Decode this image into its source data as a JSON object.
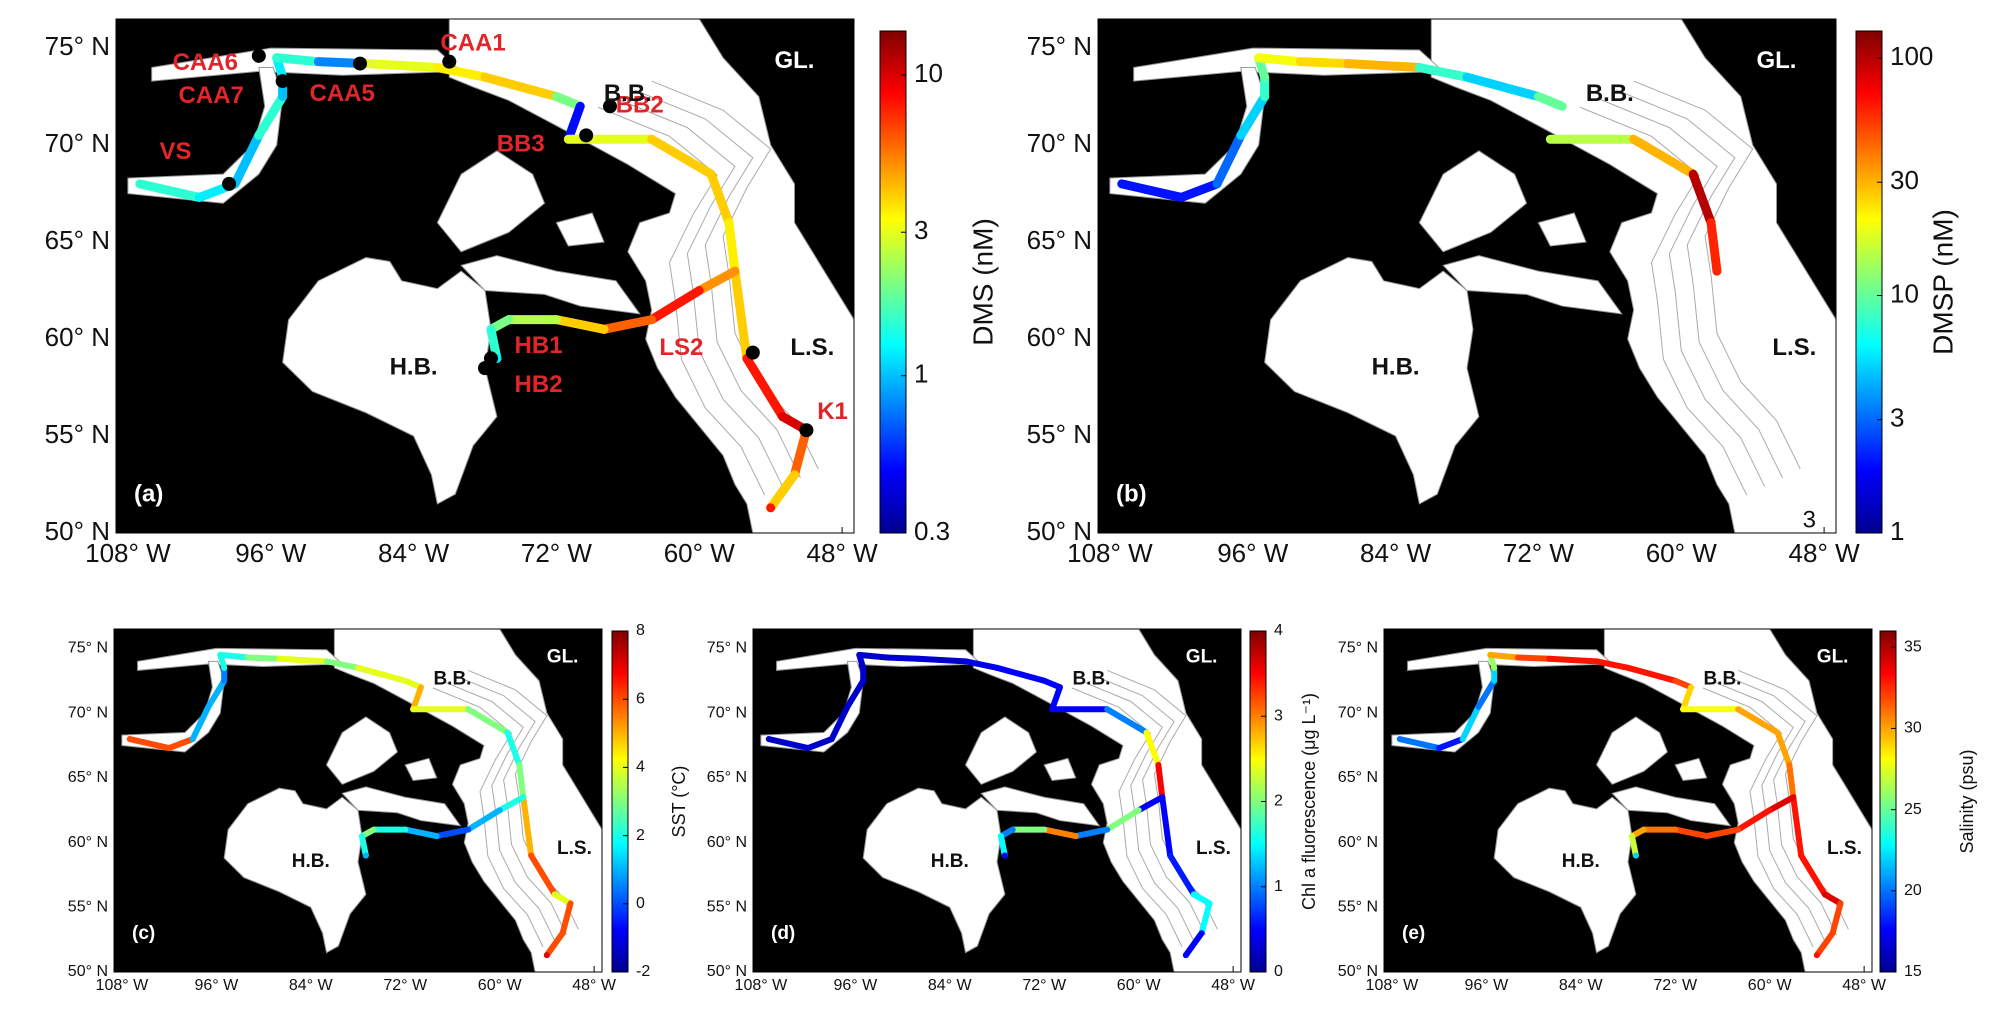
{
  "map": {
    "xlim": [
      -109,
      -47
    ],
    "ylim": [
      50,
      76.5
    ],
    "xticks": [
      {
        "value": -108,
        "label": "108° W"
      },
      {
        "value": -96,
        "label": "96° W"
      },
      {
        "value": -84,
        "label": "84° W"
      },
      {
        "value": -72,
        "label": "72° W"
      },
      {
        "value": -60,
        "label": "60° W"
      },
      {
        "value": -48,
        "label": "48° W"
      }
    ],
    "yticks": [
      {
        "value": 50,
        "label": "50° N"
      },
      {
        "value": 55,
        "label": "55° N"
      },
      {
        "value": 60,
        "label": "60° N"
      },
      {
        "value": 65,
        "label": "65° N"
      },
      {
        "value": 70,
        "label": "70° N"
      },
      {
        "value": 75,
        "label": "75° N"
      }
    ],
    "regions": [
      "B.B.",
      "GL.",
      "H.B.",
      "L.S."
    ]
  },
  "tracks": [
    {
      "lon": [
        -107,
        -102,
        -99,
        -97,
        -95,
        -95,
        -95.5,
        -92,
        -88,
        -82,
        -78,
        -72,
        -70,
        -71,
        -64,
        -59,
        -57.5,
        -57,
        -56,
        -53,
        -51,
        -52,
        -54
      ],
      "lat": [
        68,
        67.3,
        68,
        70.5,
        72.5,
        73.5,
        74.5,
        74.3,
        74.2,
        74,
        73.5,
        72.5,
        72,
        70.3,
        70.3,
        68.5,
        66,
        63.5,
        59,
        56,
        55.3,
        53,
        51.3
      ]
    },
    {
      "lon": [
        -57,
        -60,
        -64,
        -68,
        -72,
        -76,
        -77.5,
        -77
      ],
      "lat": [
        63.5,
        62.5,
        61,
        60.5,
        61,
        61,
        60.5,
        59
      ]
    }
  ],
  "panels": [
    {
      "label": "(a)",
      "colorbar_label": "DMS (nM)",
      "scale": "log",
      "clim": [
        0.3,
        14
      ],
      "cticks": [
        0.3,
        1,
        3,
        10
      ],
      "stations": [
        "CAA1",
        "CAA5",
        "CAA6",
        "CAA7",
        "VS",
        "BB2",
        "BB3",
        "LS2",
        "K1",
        "HB1",
        "HB2"
      ],
      "values": [
        [
          1.5,
          1.2,
          1,
          1.5,
          1,
          1.2,
          1.5,
          0.8,
          3,
          3.5,
          4,
          2,
          0.5,
          3,
          4,
          4,
          3.5,
          4,
          8,
          10,
          6,
          4,
          8
        ],
        [
          5,
          8,
          6,
          4,
          2.5,
          2,
          1.5,
          1.2
        ]
      ]
    },
    {
      "label": "(b)",
      "colorbar_label": "DMSP (nM)",
      "scale": "log",
      "clim": [
        1,
        130
      ],
      "cticks": [
        1,
        3,
        10,
        30,
        100
      ],
      "note": "3",
      "values": [
        [
          2,
          2,
          3,
          5,
          8,
          10,
          20,
          25,
          30,
          8,
          5,
          10,
          null,
          15,
          30,
          100,
          60,
          null,
          null,
          null,
          null,
          null,
          null
        ],
        [
          null,
          null,
          null,
          null,
          null,
          null,
          null,
          null
        ]
      ]
    },
    {
      "label": "(c)",
      "colorbar_label": "SST (°C)",
      "scale": "linear",
      "clim": [
        -2,
        8
      ],
      "cticks": [
        -2,
        0,
        2,
        4,
        6,
        8
      ],
      "values": [
        [
          6,
          6,
          1,
          1,
          0.5,
          2,
          2,
          3,
          4,
          3,
          4,
          4,
          5,
          4,
          3,
          2,
          3,
          5,
          6,
          4,
          6,
          6,
          7
        ],
        [
          2,
          1,
          0,
          1,
          2,
          3,
          2,
          1
        ]
      ]
    },
    {
      "label": "(d)",
      "colorbar_label": "Chl a fluorescence (μg L⁻¹)",
      "scale": "linear",
      "clim": [
        0,
        4
      ],
      "cticks": [
        0,
        1,
        2,
        3,
        4
      ],
      "values": [
        [
          0.3,
          0.3,
          0.3,
          0.3,
          0.3,
          0.3,
          0.3,
          0.3,
          0.3,
          0.4,
          0.5,
          0.5,
          0.5,
          0.5,
          1,
          2.5,
          3.5,
          0.5,
          0.6,
          1.5,
          1.5,
          0.5,
          0.5
        ],
        [
          0.5,
          2,
          1,
          3,
          2,
          1,
          1.5,
          0.5
        ]
      ]
    },
    {
      "label": "(e)",
      "colorbar_label": "Salinity (psu)",
      "scale": "linear",
      "clim": [
        15,
        36
      ],
      "cticks": [
        15,
        20,
        25,
        30,
        35
      ],
      "values": [
        [
          20,
          18,
          22,
          20,
          22,
          26,
          30,
          32,
          33,
          33,
          33,
          32,
          29,
          28,
          30,
          30,
          31,
          33,
          33,
          34,
          32,
          32,
          33
        ],
        [
          34,
          33,
          32,
          32,
          31,
          30,
          27,
          22
        ]
      ]
    }
  ]
}
